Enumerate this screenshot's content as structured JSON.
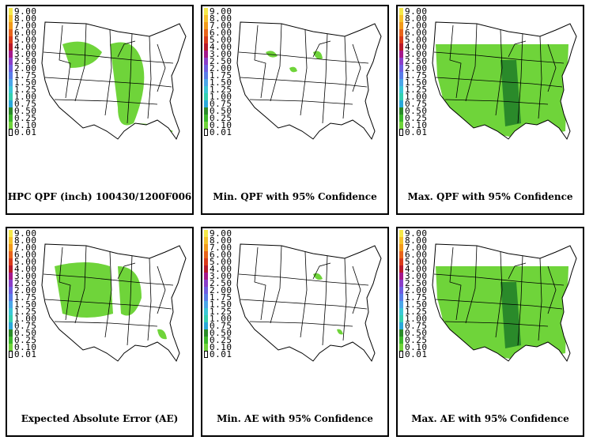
{
  "legend": {
    "values": [
      "9.00",
      "8.00",
      "7.00",
      "6.00",
      "5.00",
      "4.00",
      "3.00",
      "2.50",
      "2.00",
      "1.75",
      "1.50",
      "1.25",
      "1.00",
      "0.75",
      "0.50",
      "0.25",
      "0.10",
      "0.01"
    ],
    "colors": [
      "#f5e84a",
      "#f7c22c",
      "#f29b1b",
      "#e8641a",
      "#d93a1a",
      "#b81a2a",
      "#a5198a",
      "#8a3fc8",
      "#6f5ee0",
      "#5a7de8",
      "#4ba6e8",
      "#3cc7d6",
      "#35d0b0",
      "#2aa8d8",
      "#2a8a2a",
      "#3ab82a",
      "#6fd43a",
      "#ffffff"
    ]
  },
  "panels": [
    {
      "caption": "HPC QPF (inch) 100430/1200F006"
    },
    {
      "caption": "Min. QPF with 95% Confidence"
    },
    {
      "caption": "Max. QPF with 95% Confidence"
    },
    {
      "caption": "Expected Absolute Error (AE)"
    },
    {
      "caption": "Min. AE with 95% Confidence"
    },
    {
      "caption": "Max. AE with 95% Confidence"
    }
  ]
}
